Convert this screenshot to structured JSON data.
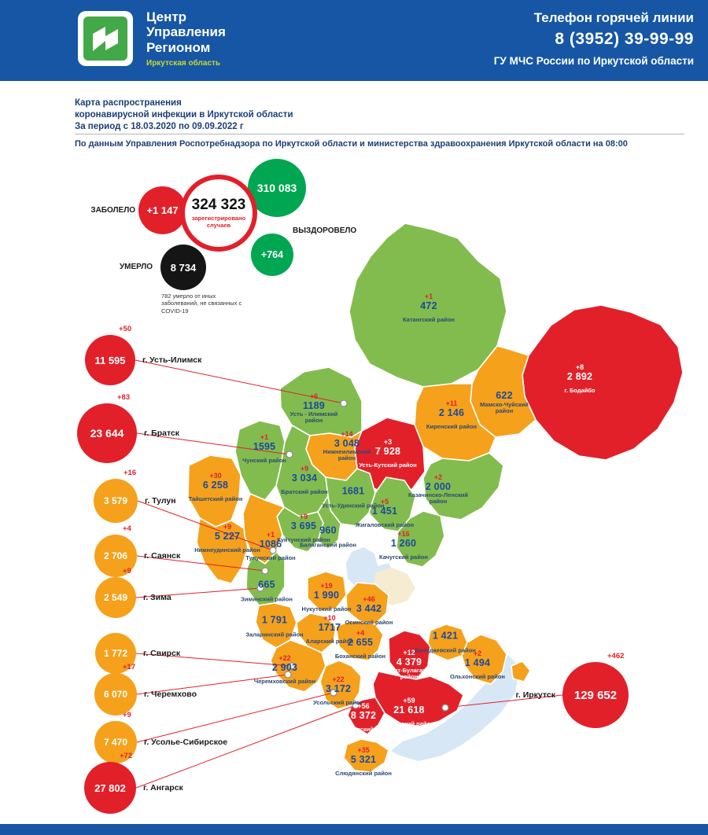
{
  "header": {
    "org_name": "Центр\nУправления\nРегионом",
    "org_region": "Иркутская область",
    "hotline_label": "Телефон горячей линии",
    "hotline_phone": "8 (3952) 39-99-99",
    "hotline_agency": "ГУ МЧС России по Иркутской области"
  },
  "title": {
    "line1": "Карта распространения",
    "line2": "коронавирусной инфекции в Иркутской области",
    "line3": "За период с 18.03.2020 по 09.09.2022 г",
    "source": "По данным Управления Роспотребнадзора по Иркутской области и министерства здравоохранения Иркутской области на 08:00"
  },
  "stats": {
    "new_cases": {
      "value": "+1 147",
      "label": "ЗАБОЛЕЛО"
    },
    "total": {
      "value": "324 323",
      "label": "зарегистрировано случаев"
    },
    "recovered": {
      "value": "310 083",
      "label": "ВЫЗДОРОВЕЛО"
    },
    "recovered_new": {
      "value": "+764"
    },
    "died": {
      "value": "8 734",
      "label": "УМЕРЛО"
    },
    "note": "782 умерло от иных заболеваний, не связанных с COVID-19"
  },
  "colors": {
    "header_blue": "#1656a5",
    "map_green": "#82bc4e",
    "map_orange": "#f5a11c",
    "map_red": "#e2202a",
    "value_blue": "#1b4a9e",
    "recovered_green": "#00a651"
  },
  "map": {
    "districts": [
      {
        "name": "Катангский район",
        "value": "472",
        "delta": "+1",
        "level": "green"
      },
      {
        "name": "г. Бодайбо",
        "value": "2 892",
        "delta": "+8",
        "level": "red"
      },
      {
        "name": "Мамско-Чуйский район",
        "value": "622",
        "delta": "",
        "level": "orange"
      },
      {
        "name": "Киренский район",
        "value": "2 146",
        "delta": "+11",
        "level": "orange"
      },
      {
        "name": "Усть-Кутский район",
        "value": "7 928",
        "delta": "+3",
        "level": "red"
      },
      {
        "name": "Усть - Илимский район",
        "value": "1189",
        "delta": "+6",
        "level": "green"
      },
      {
        "name": "Нижнеилимский район",
        "value": "3 048",
        "delta": "+14",
        "level": "orange"
      },
      {
        "name": "Казачинско-Ленский район",
        "value": "2 000",
        "delta": "+2",
        "level": "green"
      },
      {
        "name": "Чунский район",
        "value": "1595",
        "delta": "+1",
        "level": "green"
      },
      {
        "name": "Братский район",
        "value": "3 034",
        "delta": "+9",
        "level": "green"
      },
      {
        "name": "Тайшетский район",
        "value": "6 258",
        "delta": "+30",
        "level": "orange"
      },
      {
        "name": "Усть-Удинский район",
        "value": "1681",
        "delta": "",
        "level": "green"
      },
      {
        "name": "Жигаловский район",
        "value": "1 451",
        "delta": "+5",
        "level": "green"
      },
      {
        "name": "Качугский район",
        "value": "1 260",
        "delta": "+16",
        "level": "green"
      },
      {
        "name": "Нижнеудинский район",
        "value": "5 227",
        "delta": "+9",
        "level": "orange"
      },
      {
        "name": "Куйтунский район",
        "value": "3 695",
        "delta": "+9",
        "level": "green"
      },
      {
        "name": "Тулунский район",
        "value": "1086",
        "delta": "+1",
        "level": "orange"
      },
      {
        "name": "Балаганский район",
        "value": "960",
        "delta": "",
        "level": "green"
      },
      {
        "name": "Зиминский район",
        "value": "665",
        "delta": "",
        "level": "green"
      },
      {
        "name": "Нукутский район",
        "value": "1 990",
        "delta": "+19",
        "level": "orange"
      },
      {
        "name": "Осинский район",
        "value": "3 442",
        "delta": "+46",
        "level": "orange"
      },
      {
        "name": "Заларинский район",
        "value": "1 791",
        "delta": "",
        "level": "orange"
      },
      {
        "name": "Аларский район",
        "value": "1717",
        "delta": "+10",
        "level": "orange"
      },
      {
        "name": "Боханский район",
        "value": "2 655",
        "delta": "+4",
        "level": "orange"
      },
      {
        "name": "Эхирит-Булагатский район",
        "value": "4 379",
        "delta": "+12",
        "level": "red"
      },
      {
        "name": "Баяндаевский район",
        "value": "1 421",
        "delta": "",
        "level": "orange"
      },
      {
        "name": "Ольхонский район",
        "value": "1 494",
        "delta": "+2",
        "level": "orange"
      },
      {
        "name": "Черемховский район",
        "value": "2 903",
        "delta": "+22",
        "level": "orange"
      },
      {
        "name": "Усольский район",
        "value": "3 172",
        "delta": "+22",
        "level": "orange"
      },
      {
        "name": "Шелеховский район",
        "value": "8 372",
        "delta": "+56",
        "level": "red"
      },
      {
        "name": "Иркутский район",
        "value": "21 618",
        "delta": "+59",
        "level": "red"
      },
      {
        "name": "Слюдянский район",
        "value": "5 321",
        "delta": "+35",
        "level": "orange"
      }
    ]
  },
  "cities": [
    {
      "name": "г. Усть-Илимск",
      "value": "11 595",
      "delta": "+50",
      "level": "red"
    },
    {
      "name": "г. Братск",
      "value": "23 644",
      "delta": "+83",
      "level": "red"
    },
    {
      "name": "г. Тулун",
      "value": "3 579",
      "delta": "+16",
      "level": "orange"
    },
    {
      "name": "г. Саянск",
      "value": "2 706",
      "delta": "+4",
      "level": "orange"
    },
    {
      "name": "г. Зима",
      "value": "2 549",
      "delta": "+9",
      "level": "orange"
    },
    {
      "name": "г. Свирск",
      "value": "1 772",
      "delta": "",
      "level": "orange"
    },
    {
      "name": "г. Черемхово",
      "value": "6 070",
      "delta": "+17",
      "level": "orange"
    },
    {
      "name": "г. Усолье-Сибирское",
      "value": "7 470",
      "delta": "+9",
      "level": "orange"
    },
    {
      "name": "г. Ангарск",
      "value": "27 802",
      "delta": "+72",
      "level": "red"
    },
    {
      "name": "г. Иркутск",
      "value": "129 652",
      "delta": "+462",
      "level": "red"
    }
  ]
}
